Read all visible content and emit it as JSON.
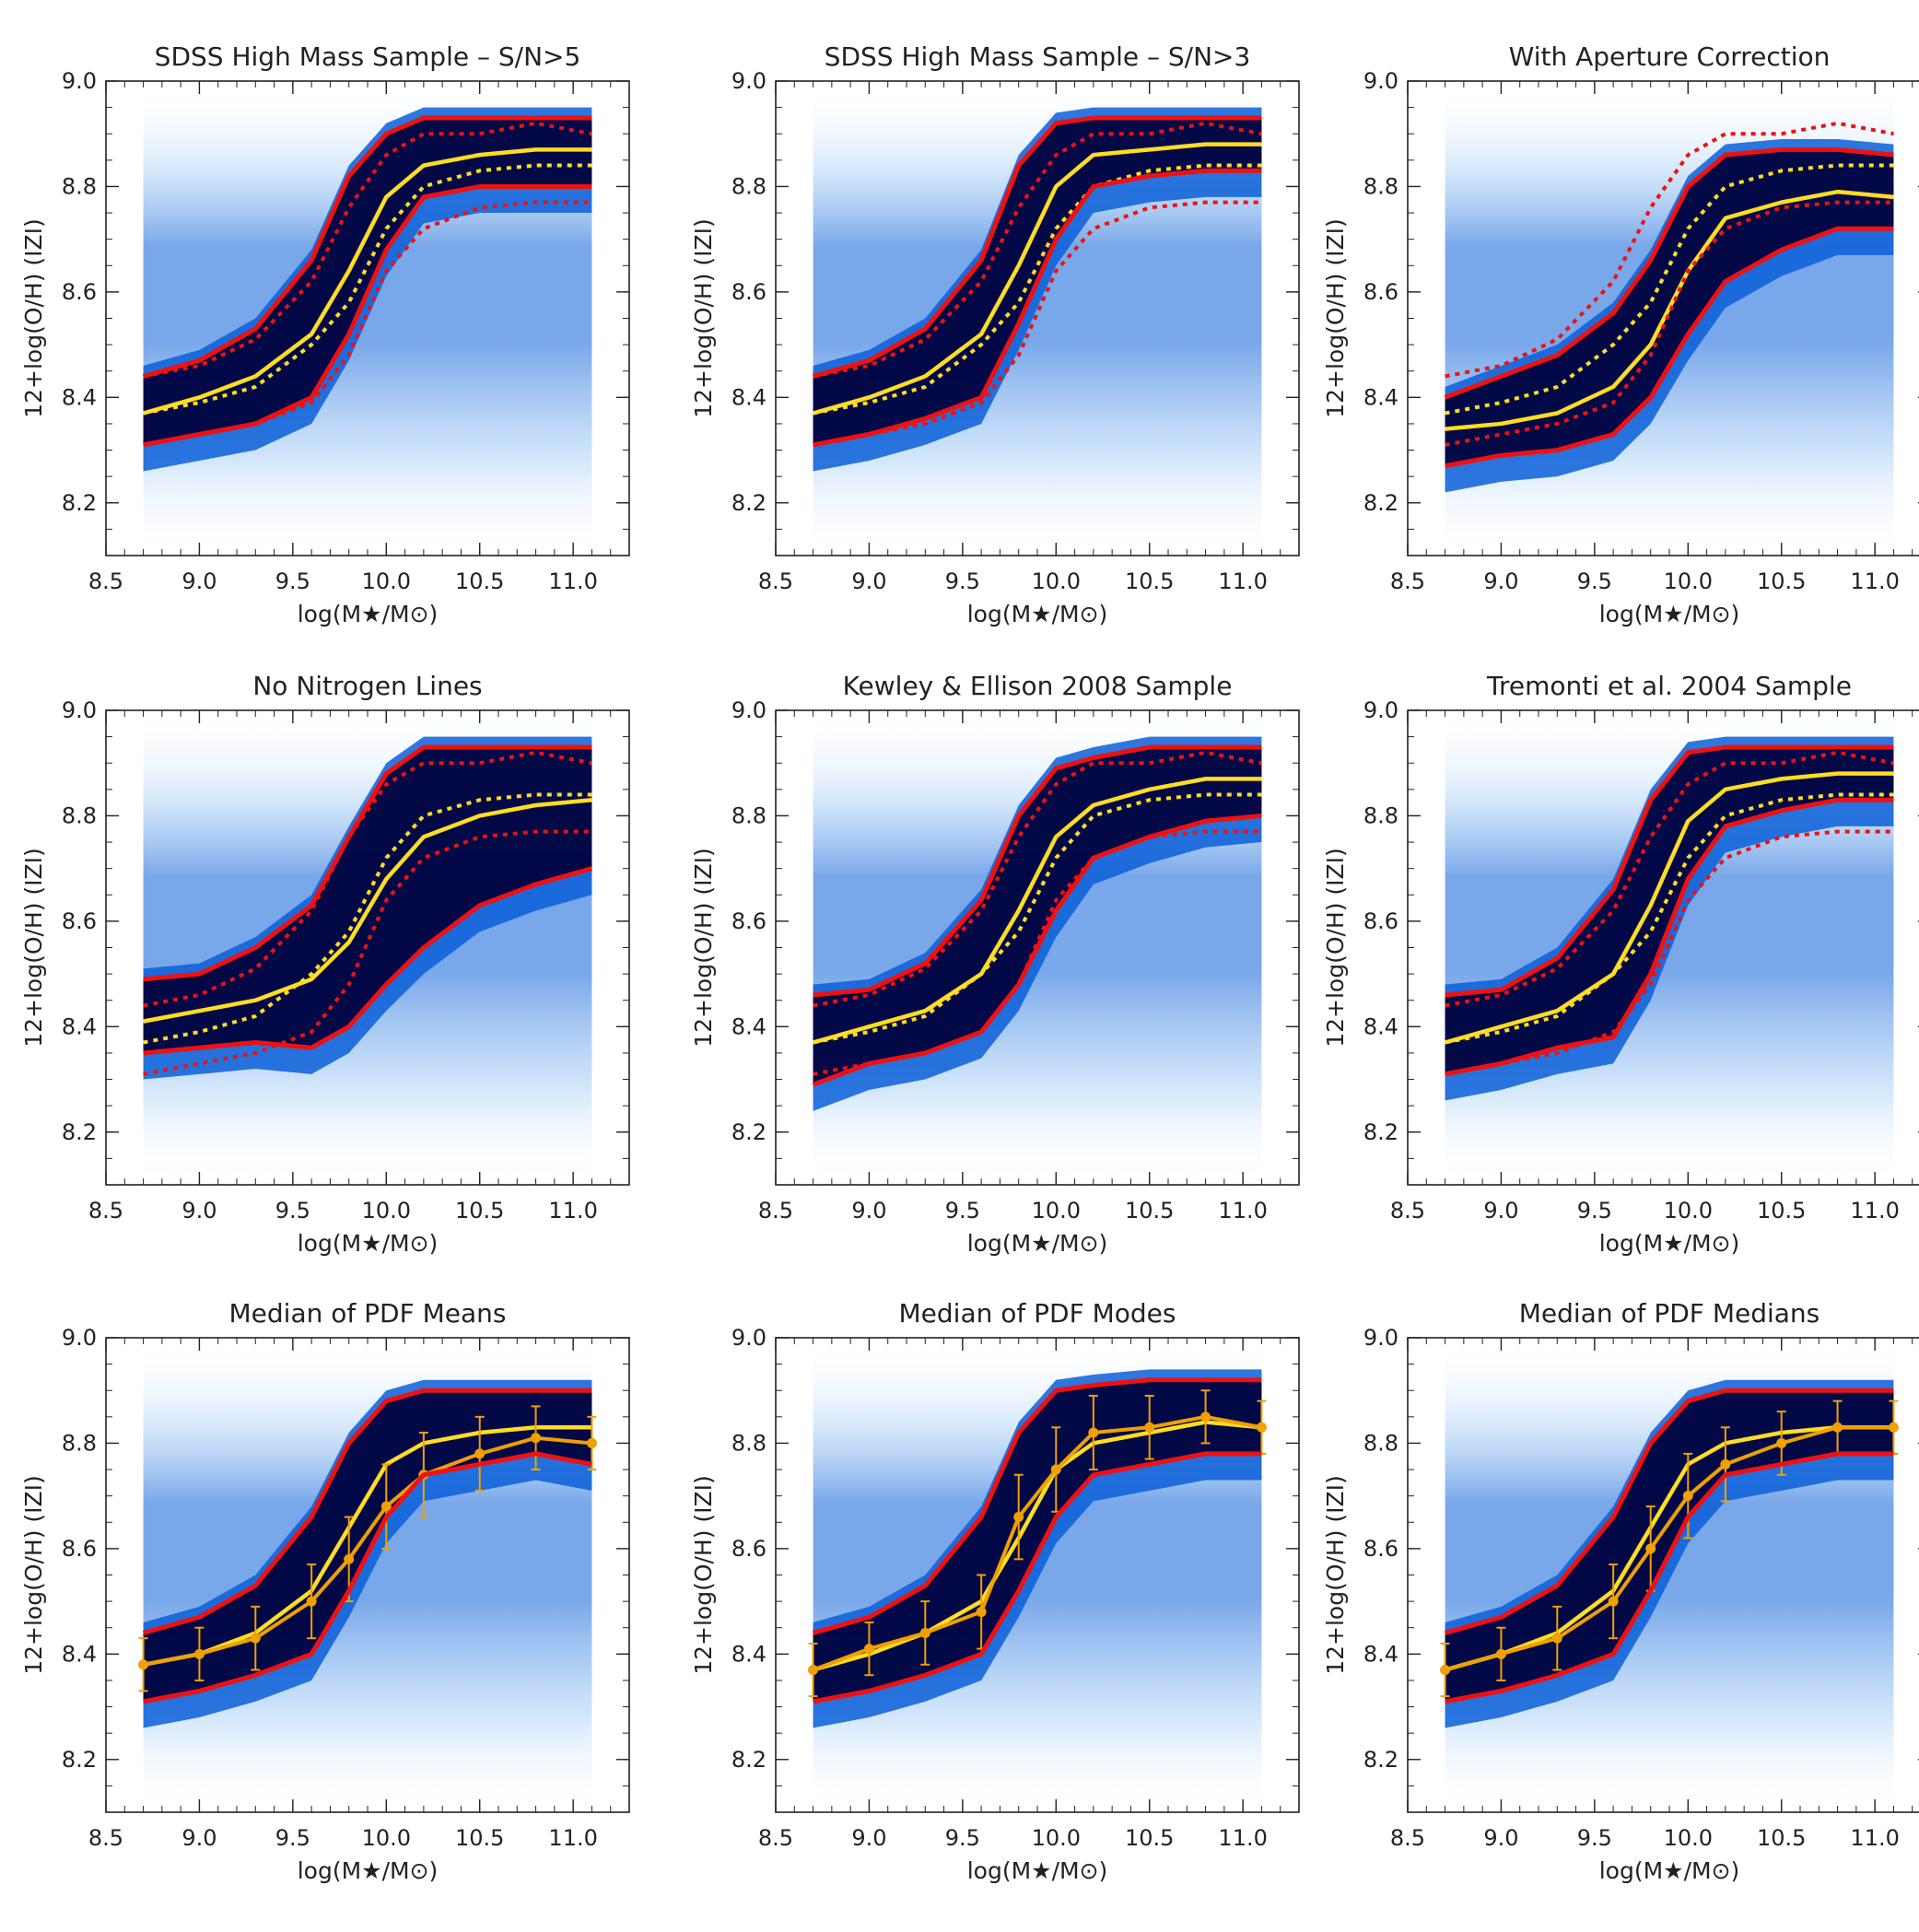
{
  "figure": {
    "xlabel": "log(M★/M⊙)",
    "ylabel": "12+log(O/H) (IZI)",
    "xlim": [
      8.5,
      11.3
    ],
    "ylim": [
      8.1,
      9.0
    ],
    "xticks": [
      "8.5",
      "9.0",
      "9.5",
      "10.0",
      "10.5",
      "11.0"
    ],
    "yticks": [
      "8.2",
      "8.4",
      "8.6",
      "8.8",
      "9.0"
    ],
    "colors": {
      "density_dark": "#00003a",
      "density_mid": "#0a5fd8",
      "density_light": "#9cc9f5",
      "contour": "#ee1111",
      "median": "#ffdd22",
      "errorbar": "#f0a000"
    }
  },
  "chart_data": [
    {
      "type": "line",
      "title": "SDSS High Mass Sample – S/N>5",
      "x": [
        8.7,
        9.0,
        9.3,
        9.6,
        9.8,
        10.0,
        10.2,
        10.5,
        10.8,
        11.1
      ],
      "series": [
        {
          "name": "median",
          "style": "solid-yellow",
          "values": [
            8.37,
            8.4,
            8.44,
            8.52,
            8.64,
            8.78,
            8.84,
            8.86,
            8.87,
            8.87
          ]
        },
        {
          "name": "reference median",
          "style": "dotted-yellow",
          "values": [
            8.37,
            8.39,
            8.42,
            8.5,
            8.58,
            8.72,
            8.8,
            8.83,
            8.84,
            8.84
          ]
        },
        {
          "name": "upper contour",
          "style": "solid-red",
          "values": [
            8.44,
            8.47,
            8.53,
            8.66,
            8.82,
            8.9,
            8.93,
            8.93,
            8.93,
            8.93
          ]
        },
        {
          "name": "lower contour",
          "style": "solid-red",
          "values": [
            8.31,
            8.33,
            8.35,
            8.4,
            8.52,
            8.68,
            8.78,
            8.8,
            8.8,
            8.8
          ]
        },
        {
          "name": "reference upper",
          "style": "dotted-red",
          "values": [
            8.44,
            8.46,
            8.51,
            8.62,
            8.76,
            8.86,
            8.9,
            8.9,
            8.92,
            8.9
          ]
        },
        {
          "name": "reference lower",
          "style": "dotted-red",
          "values": [
            8.31,
            8.33,
            8.35,
            8.39,
            8.48,
            8.64,
            8.72,
            8.76,
            8.77,
            8.77
          ]
        }
      ]
    },
    {
      "type": "line",
      "title": "SDSS High Mass Sample – S/N>3",
      "x": [
        8.7,
        9.0,
        9.3,
        9.6,
        9.8,
        10.0,
        10.2,
        10.5,
        10.8,
        11.1
      ],
      "series": [
        {
          "name": "median",
          "style": "solid-yellow",
          "values": [
            8.37,
            8.4,
            8.44,
            8.52,
            8.65,
            8.8,
            8.86,
            8.87,
            8.88,
            8.88
          ]
        },
        {
          "name": "reference median",
          "style": "dotted-yellow",
          "values": [
            8.37,
            8.39,
            8.42,
            8.5,
            8.58,
            8.72,
            8.8,
            8.83,
            8.84,
            8.84
          ]
        },
        {
          "name": "upper contour",
          "style": "solid-red",
          "values": [
            8.44,
            8.47,
            8.53,
            8.66,
            8.84,
            8.92,
            8.93,
            8.93,
            8.93,
            8.93
          ]
        },
        {
          "name": "lower contour",
          "style": "solid-red",
          "values": [
            8.31,
            8.33,
            8.36,
            8.4,
            8.54,
            8.7,
            8.8,
            8.82,
            8.83,
            8.83
          ]
        },
        {
          "name": "reference upper",
          "style": "dotted-red",
          "values": [
            8.44,
            8.46,
            8.51,
            8.62,
            8.76,
            8.86,
            8.9,
            8.9,
            8.92,
            8.9
          ]
        },
        {
          "name": "reference lower",
          "style": "dotted-red",
          "values": [
            8.31,
            8.33,
            8.35,
            8.39,
            8.48,
            8.64,
            8.72,
            8.76,
            8.77,
            8.77
          ]
        }
      ]
    },
    {
      "type": "line",
      "title": "With Aperture Correction",
      "x": [
        8.7,
        9.0,
        9.3,
        9.6,
        9.8,
        10.0,
        10.2,
        10.5,
        10.8,
        11.1
      ],
      "series": [
        {
          "name": "median",
          "style": "solid-yellow",
          "values": [
            8.34,
            8.35,
            8.37,
            8.42,
            8.5,
            8.64,
            8.74,
            8.77,
            8.79,
            8.78
          ]
        },
        {
          "name": "reference median",
          "style": "dotted-yellow",
          "values": [
            8.37,
            8.39,
            8.42,
            8.5,
            8.58,
            8.72,
            8.8,
            8.83,
            8.84,
            8.84
          ]
        },
        {
          "name": "upper contour",
          "style": "solid-red",
          "values": [
            8.4,
            8.44,
            8.48,
            8.56,
            8.66,
            8.8,
            8.86,
            8.87,
            8.87,
            8.86
          ]
        },
        {
          "name": "lower contour",
          "style": "solid-red",
          "values": [
            8.27,
            8.29,
            8.3,
            8.33,
            8.4,
            8.52,
            8.62,
            8.68,
            8.72,
            8.72
          ]
        },
        {
          "name": "reference upper",
          "style": "dotted-red",
          "values": [
            8.44,
            8.46,
            8.51,
            8.62,
            8.76,
            8.86,
            8.9,
            8.9,
            8.92,
            8.9
          ]
        },
        {
          "name": "reference lower",
          "style": "dotted-red",
          "values": [
            8.31,
            8.33,
            8.35,
            8.39,
            8.48,
            8.64,
            8.72,
            8.76,
            8.77,
            8.77
          ]
        }
      ]
    },
    {
      "type": "line",
      "title": "No Nitrogen Lines",
      "x": [
        8.7,
        9.0,
        9.3,
        9.6,
        9.8,
        10.0,
        10.2,
        10.5,
        10.8,
        11.1
      ],
      "series": [
        {
          "name": "median",
          "style": "solid-yellow",
          "values": [
            8.41,
            8.43,
            8.45,
            8.49,
            8.56,
            8.68,
            8.76,
            8.8,
            8.82,
            8.83
          ]
        },
        {
          "name": "reference median",
          "style": "dotted-yellow",
          "values": [
            8.37,
            8.39,
            8.42,
            8.5,
            8.58,
            8.72,
            8.8,
            8.83,
            8.84,
            8.84
          ]
        },
        {
          "name": "upper contour",
          "style": "solid-red",
          "values": [
            8.49,
            8.5,
            8.55,
            8.63,
            8.76,
            8.88,
            8.93,
            8.93,
            8.93,
            8.93
          ]
        },
        {
          "name": "lower contour",
          "style": "solid-red",
          "values": [
            8.35,
            8.36,
            8.37,
            8.36,
            8.4,
            8.48,
            8.55,
            8.63,
            8.67,
            8.7
          ]
        },
        {
          "name": "reference upper",
          "style": "dotted-red",
          "values": [
            8.44,
            8.46,
            8.51,
            8.62,
            8.76,
            8.86,
            8.9,
            8.9,
            8.92,
            8.9
          ]
        },
        {
          "name": "reference lower",
          "style": "dotted-red",
          "values": [
            8.31,
            8.33,
            8.35,
            8.39,
            8.48,
            8.64,
            8.72,
            8.76,
            8.77,
            8.77
          ]
        }
      ]
    },
    {
      "type": "line",
      "title": "Kewley & Ellison 2008 Sample",
      "x": [
        8.7,
        9.0,
        9.3,
        9.6,
        9.8,
        10.0,
        10.2,
        10.5,
        10.8,
        11.1
      ],
      "series": [
        {
          "name": "median",
          "style": "solid-yellow",
          "values": [
            8.37,
            8.4,
            8.43,
            8.5,
            8.62,
            8.76,
            8.82,
            8.85,
            8.87,
            8.87
          ]
        },
        {
          "name": "reference median",
          "style": "dotted-yellow",
          "values": [
            8.37,
            8.39,
            8.42,
            8.5,
            8.58,
            8.72,
            8.8,
            8.83,
            8.84,
            8.84
          ]
        },
        {
          "name": "upper contour",
          "style": "solid-red",
          "values": [
            8.46,
            8.47,
            8.52,
            8.64,
            8.8,
            8.89,
            8.91,
            8.93,
            8.93,
            8.93
          ]
        },
        {
          "name": "lower contour",
          "style": "solid-red",
          "values": [
            8.29,
            8.33,
            8.35,
            8.39,
            8.48,
            8.62,
            8.72,
            8.76,
            8.79,
            8.8
          ]
        },
        {
          "name": "reference upper",
          "style": "dotted-red",
          "values": [
            8.44,
            8.46,
            8.51,
            8.62,
            8.76,
            8.86,
            8.9,
            8.9,
            8.92,
            8.9
          ]
        },
        {
          "name": "reference lower",
          "style": "dotted-red",
          "values": [
            8.31,
            8.33,
            8.35,
            8.39,
            8.48,
            8.64,
            8.72,
            8.76,
            8.77,
            8.77
          ]
        }
      ]
    },
    {
      "type": "line",
      "title": "Tremonti et al. 2004 Sample",
      "x": [
        8.7,
        9.0,
        9.3,
        9.6,
        9.8,
        10.0,
        10.2,
        10.5,
        10.8,
        11.1
      ],
      "series": [
        {
          "name": "median",
          "style": "solid-yellow",
          "values": [
            8.37,
            8.4,
            8.43,
            8.5,
            8.63,
            8.79,
            8.85,
            8.87,
            8.88,
            8.88
          ]
        },
        {
          "name": "reference median",
          "style": "dotted-yellow",
          "values": [
            8.37,
            8.39,
            8.42,
            8.5,
            8.58,
            8.72,
            8.8,
            8.83,
            8.84,
            8.84
          ]
        },
        {
          "name": "upper contour",
          "style": "solid-red",
          "values": [
            8.46,
            8.47,
            8.53,
            8.66,
            8.83,
            8.92,
            8.93,
            8.93,
            8.93,
            8.93
          ]
        },
        {
          "name": "lower contour",
          "style": "solid-red",
          "values": [
            8.31,
            8.33,
            8.36,
            8.38,
            8.5,
            8.68,
            8.78,
            8.81,
            8.83,
            8.83
          ]
        },
        {
          "name": "reference upper",
          "style": "dotted-red",
          "values": [
            8.44,
            8.46,
            8.51,
            8.62,
            8.76,
            8.86,
            8.9,
            8.9,
            8.92,
            8.9
          ]
        },
        {
          "name": "reference lower",
          "style": "dotted-red",
          "values": [
            8.31,
            8.33,
            8.35,
            8.39,
            8.48,
            8.64,
            8.72,
            8.76,
            8.77,
            8.77
          ]
        }
      ]
    },
    {
      "type": "line",
      "title": "Median of PDF Means",
      "x": [
        8.7,
        9.0,
        9.3,
        9.6,
        9.8,
        10.0,
        10.2,
        10.5,
        10.8,
        11.1
      ],
      "series": [
        {
          "name": "median",
          "style": "solid-yellow",
          "values": [
            8.38,
            8.4,
            8.44,
            8.52,
            8.64,
            8.76,
            8.8,
            8.82,
            8.83,
            8.83
          ]
        },
        {
          "name": "pdf statistic",
          "style": "orange-errorbar",
          "values": [
            8.38,
            8.4,
            8.43,
            8.5,
            8.58,
            8.68,
            8.74,
            8.78,
            8.81,
            8.8
          ],
          "errors": [
            0.05,
            0.05,
            0.06,
            0.07,
            0.08,
            0.08,
            0.08,
            0.07,
            0.06,
            0.05
          ]
        },
        {
          "name": "upper contour",
          "style": "solid-red",
          "values": [
            8.44,
            8.47,
            8.53,
            8.66,
            8.8,
            8.88,
            8.9,
            8.9,
            8.9,
            8.9
          ]
        },
        {
          "name": "lower contour",
          "style": "solid-red",
          "values": [
            8.31,
            8.33,
            8.36,
            8.4,
            8.52,
            8.66,
            8.74,
            8.76,
            8.78,
            8.76
          ]
        }
      ]
    },
    {
      "type": "line",
      "title": "Median of PDF Modes",
      "x": [
        8.7,
        9.0,
        9.3,
        9.6,
        9.8,
        10.0,
        10.2,
        10.5,
        10.8,
        11.1
      ],
      "series": [
        {
          "name": "median",
          "style": "solid-yellow",
          "values": [
            8.37,
            8.4,
            8.44,
            8.5,
            8.62,
            8.75,
            8.8,
            8.82,
            8.84,
            8.83
          ]
        },
        {
          "name": "pdf statistic",
          "style": "orange-errorbar",
          "values": [
            8.37,
            8.41,
            8.44,
            8.48,
            8.66,
            8.75,
            8.82,
            8.83,
            8.85,
            8.83
          ],
          "errors": [
            0.05,
            0.05,
            0.06,
            0.07,
            0.08,
            0.08,
            0.07,
            0.06,
            0.05,
            0.05
          ]
        },
        {
          "name": "upper contour",
          "style": "solid-red",
          "values": [
            8.44,
            8.47,
            8.53,
            8.66,
            8.82,
            8.9,
            8.91,
            8.92,
            8.92,
            8.92
          ]
        },
        {
          "name": "lower contour",
          "style": "solid-red",
          "values": [
            8.31,
            8.33,
            8.36,
            8.4,
            8.52,
            8.66,
            8.74,
            8.76,
            8.78,
            8.78
          ]
        }
      ]
    },
    {
      "type": "line",
      "title": "Median of PDF Medians",
      "x": [
        8.7,
        9.0,
        9.3,
        9.6,
        9.8,
        10.0,
        10.2,
        10.5,
        10.8,
        11.1
      ],
      "series": [
        {
          "name": "median",
          "style": "solid-yellow",
          "values": [
            8.37,
            8.4,
            8.44,
            8.52,
            8.64,
            8.76,
            8.8,
            8.82,
            8.83,
            8.83
          ]
        },
        {
          "name": "pdf statistic",
          "style": "orange-errorbar",
          "values": [
            8.37,
            8.4,
            8.43,
            8.5,
            8.6,
            8.7,
            8.76,
            8.8,
            8.83,
            8.83
          ],
          "errors": [
            0.05,
            0.05,
            0.06,
            0.07,
            0.08,
            0.08,
            0.07,
            0.06,
            0.05,
            0.05
          ]
        },
        {
          "name": "upper contour",
          "style": "solid-red",
          "values": [
            8.44,
            8.47,
            8.53,
            8.66,
            8.8,
            8.88,
            8.9,
            8.9,
            8.9,
            8.9
          ]
        },
        {
          "name": "lower contour",
          "style": "solid-red",
          "values": [
            8.31,
            8.33,
            8.36,
            8.4,
            8.52,
            8.66,
            8.74,
            8.76,
            8.78,
            8.78
          ]
        }
      ]
    }
  ]
}
